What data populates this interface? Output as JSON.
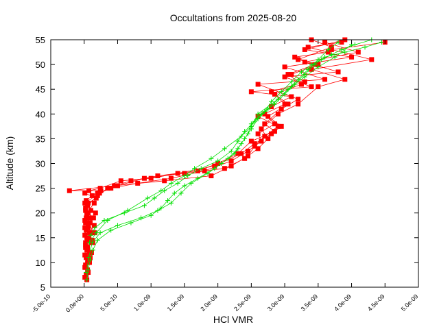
{
  "chart_data": {
    "type": "line",
    "title": "Occultations from 2025-08-20",
    "xlabel": "HCl VMR",
    "ylabel": "Altitude (km)",
    "xlim": [
      -5e-10,
      5e-09
    ],
    "ylim": [
      5,
      55
    ],
    "x_ticks": [
      -5e-10,
      0,
      5e-10,
      1e-09,
      1.5e-09,
      2e-09,
      2.5e-09,
      3e-09,
      3.5e-09,
      4e-09,
      4.5e-09,
      5e-09
    ],
    "x_tick_labels": [
      "-5.0e-10",
      "0.0e+00",
      "5.0e-10",
      "1.0e-09",
      "1.5e-09",
      "2.0e-09",
      "2.5e-09",
      "3.0e-09",
      "3.5e-09",
      "4.0e-09",
      "4.5e-09",
      "5.0e-09"
    ],
    "y_ticks": [
      5,
      10,
      15,
      20,
      25,
      30,
      35,
      40,
      45,
      50,
      55
    ],
    "y_tick_labels": [
      "5",
      "10",
      "15",
      "20",
      "25",
      "30",
      "35",
      "40",
      "45",
      "50",
      "55"
    ],
    "grid": false,
    "legend": "none",
    "series": [
      {
        "color": "#ff0000",
        "marker": "square",
        "profiles": [
          {
            "x": [
              4e-11,
              3e-11,
              5e-11,
              2e-11,
              6e-11,
              1e-11,
              4e-11,
              2e-11,
              5e-11,
              1e-11,
              3e-11,
              6e-11,
              1e-11,
              4e-11,
              2e-11,
              5e-11,
              3e-11,
              1.2e-10,
              2.5e-10,
              -2.2e-10,
              4.5e-10,
              1.2e-09,
              1.9e-09,
              2.2e-09,
              2.45e-09,
              2.55e-09,
              2.7e-09,
              2.9e-09,
              2.6e-09,
              2.8e-09,
              3.1e-09,
              2.5e-09,
              3.4e-09,
              3e-09,
              3.8e-09,
              3.3e-09,
              4.1e-09,
              3.6e-09
            ],
            "y": [
              6.5,
              7.5,
              8.5,
              9.5,
              10.5,
              11.5,
              12.5,
              13.5,
              14.5,
              15.5,
              16.5,
              17.5,
              18.5,
              19.5,
              20.5,
              21.5,
              22.5,
              23.5,
              24.5,
              24.5,
              25.5,
              26.5,
              27.5,
              29.5,
              31.5,
              33.5,
              35.5,
              37.5,
              39.5,
              41.5,
              43.5,
              44.5,
              45.5,
              47.5,
              48.5,
              50.5,
              52.5,
              54.5
            ]
          },
          {
            "x": [
              1e-11,
              6e-11,
              2e-11,
              7e-11,
              3e-11,
              8e-11,
              2e-11,
              1e-10,
              4e-11,
              1.2e-10,
              6e-11,
              2e-11,
              9e-11,
              4e-11,
              1.5e-10,
              2e-10,
              5e-10,
              9e-10,
              1.5e-09,
              2.1e-09,
              2.4e-09,
              2.6e-09,
              2.75e-09,
              2.65e-09,
              2.9e-09,
              3.2e-09,
              3.5e-09,
              3.9e-09,
              3.4e-09,
              4.3e-09,
              3.7e-09,
              4.5e-09
            ],
            "y": [
              7,
              8,
              9,
              10,
              11,
              12,
              13,
              14,
              15,
              16,
              17,
              18,
              19,
              20,
              22,
              24,
              25.5,
              27,
              28,
              29,
              31,
              33,
              35,
              37,
              40,
              42,
              45.5,
              47,
              49,
              51,
              53,
              54.5
            ]
          },
          {
            "x": [
              6e-11,
              1e-11,
              8e-11,
              3e-11,
              1.1e-10,
              4e-11,
              1.3e-10,
              7e-11,
              1.6e-10,
              1e-11,
              9e-11,
              1.4e-10,
              6e-11,
              2e-11,
              2e-10,
              3.5e-10,
              7e-10,
              1.1e-09,
              1.7e-09,
              2e-09,
              2.3e-09,
              2.5e-09,
              2.85e-09,
              2.7e-09,
              2.95e-09,
              3.2e-09,
              2.6e-09,
              3.6e-09,
              3e-09,
              4e-09,
              3.3e-09,
              3.9e-09
            ],
            "y": [
              8,
              9,
              10,
              11,
              12,
              13,
              14,
              15,
              16,
              17,
              18,
              19,
              20,
              21,
              23.5,
              25,
              26.5,
              27.5,
              28.5,
              30,
              32,
              34.5,
              36.5,
              38,
              41,
              43,
              46,
              47,
              49.5,
              51.5,
              53,
              55
            ]
          },
          {
            "x": [
              2e-11,
              9e-11,
              5e-11,
              1.2e-10,
              8e-11,
              1.5e-10,
              3e-11,
              1e-10,
              6e-11,
              1.8e-10,
              1e-11,
              7e-11,
              2.4e-10,
              5.5e-10,
              1e-09,
              1.4e-09,
              1.95e-09,
              2.35e-09,
              2.55e-09,
              2.8e-09,
              2.95e-09,
              2.75e-09,
              3.05e-09,
              2.8e-09,
              3.3e-09,
              3.1e-09,
              3.5e-09,
              3.2e-09,
              3.7e-09,
              3.4e-09
            ],
            "y": [
              9,
              11,
              13,
              14.5,
              16,
              17.5,
              19,
              20.5,
              22,
              23,
              24,
              24.5,
              25,
              26.5,
              27,
              28,
              29.5,
              32,
              34,
              36,
              37.5,
              39.5,
              42,
              44.5,
              46.5,
              48,
              50,
              51,
              53.5,
              55
            ]
          },
          {
            "x": [
              5e-11,
              1e-10,
              2e-11,
              1.4e-10,
              7e-11,
              1.7e-10,
              1e-11,
              2.3e-10,
              4e-10,
              8e-10,
              1.3e-09,
              1.8e-09,
              2.2e-09,
              2.45e-09,
              2.65e-09,
              2.6e-09,
              2.85e-09,
              2.7e-09,
              3e-09,
              2.85e-09,
              3.25e-09,
              3.05e-09,
              3.45e-09,
              3.15e-09,
              3.65e-09,
              3.35e-09,
              3.85e-09
            ],
            "y": [
              10,
              12,
              14,
              16,
              18,
              20,
              22,
              24,
              25,
              26,
              27,
              28.5,
              30.5,
              32.5,
              34.5,
              36,
              38,
              40,
              42,
              44,
              46,
              48,
              50,
              51.5,
              52.5,
              53.5,
              54.5
            ]
          }
        ]
      },
      {
        "color": "#00e000",
        "marker": "plus",
        "profiles": [
          {
            "x": [
              4e-11,
              6e-11,
              9e-11,
              1.3e-10,
              2e-10,
              4e-10,
              7e-10,
              1e-09,
              1.15e-09,
              1.25e-09,
              1.35e-09,
              1.5e-09,
              1.7e-09,
              1.95e-09,
              2.15e-09,
              2.3e-09,
              2.4e-09,
              2.5e-09,
              2.6e-09,
              2.75e-09,
              2.9e-09,
              3.05e-09,
              3.2e-09,
              3.35e-09,
              3.5e-09,
              3.65e-09,
              3.8e-09
            ],
            "y": [
              6.5,
              8.5,
              10.5,
              12.5,
              14.5,
              16.5,
              18,
              19.5,
              21,
              22.5,
              24,
              25.5,
              27,
              29,
              31,
              33,
              35,
              37,
              39,
              41,
              43,
              45,
              47,
              49,
              51,
              53,
              54.5
            ]
          },
          {
            "x": [
              3e-11,
              7e-11,
              1.2e-10,
              2.4e-10,
              5e-10,
              8.5e-10,
              1.1e-09,
              1.3e-09,
              1.45e-09,
              1.6e-09,
              1.85e-09,
              2.05e-09,
              2.25e-09,
              2.35e-09,
              2.45e-09,
              2.5e-09,
              2.65e-09,
              2.85e-09,
              3e-09,
              3.15e-09,
              3.3e-09,
              3.45e-09,
              3.6e-09,
              3.9e-09,
              4.2e-09,
              4.45e-09
            ],
            "y": [
              8,
              11,
              14,
              16,
              17.5,
              19,
              20.5,
              22,
              24,
              26,
              28,
              30,
              32,
              34,
              36,
              38,
              40,
              42,
              44,
              46,
              48,
              50,
              51.5,
              52.5,
              53.5,
              54.5
            ]
          },
          {
            "x": [
              1e-10,
              1.6e-10,
              3e-10,
              6e-10,
              9e-10,
              1.05e-09,
              1.2e-09,
              1.4e-09,
              1.55e-09,
              1.75e-09,
              2e-09,
              2.2e-09,
              2.3e-09,
              2.4e-09,
              2.55e-09,
              2.7e-09,
              2.8e-09,
              2.95e-09,
              3.1e-09,
              3.25e-09,
              3.4e-09,
              3.55e-09,
              3.7e-09,
              3.85e-09,
              4.05e-09,
              4.3e-09
            ],
            "y": [
              15.5,
              17,
              18.5,
              20,
              21.5,
              23,
              24.5,
              26,
              27.5,
              29,
              30.5,
              32.5,
              34.5,
              36.5,
              38.5,
              40.5,
              42.5,
              44.5,
              46.5,
              48.5,
              50,
              51,
              52,
              53,
              54,
              55
            ]
          },
          {
            "x": [
              8e-11,
              1.8e-10,
              3.5e-10,
              6.5e-10,
              9.5e-10,
              1.15e-09,
              1.3e-09,
              1.5e-09,
              1.65e-09,
              1.9e-09,
              2.1e-09,
              2.35e-09,
              2.5e-09,
              2.6e-09,
              2.9e-09,
              3.1e-09,
              3.3e-09,
              3.5e-09,
              3.75e-09,
              4e-09
            ],
            "y": [
              14,
              16,
              18.5,
              20.5,
              23,
              24.5,
              26,
              27.5,
              29,
              31,
              33,
              35.5,
              37.5,
              40,
              43,
              45.5,
              47.5,
              49.5,
              51.5,
              54
            ]
          }
        ]
      }
    ]
  }
}
